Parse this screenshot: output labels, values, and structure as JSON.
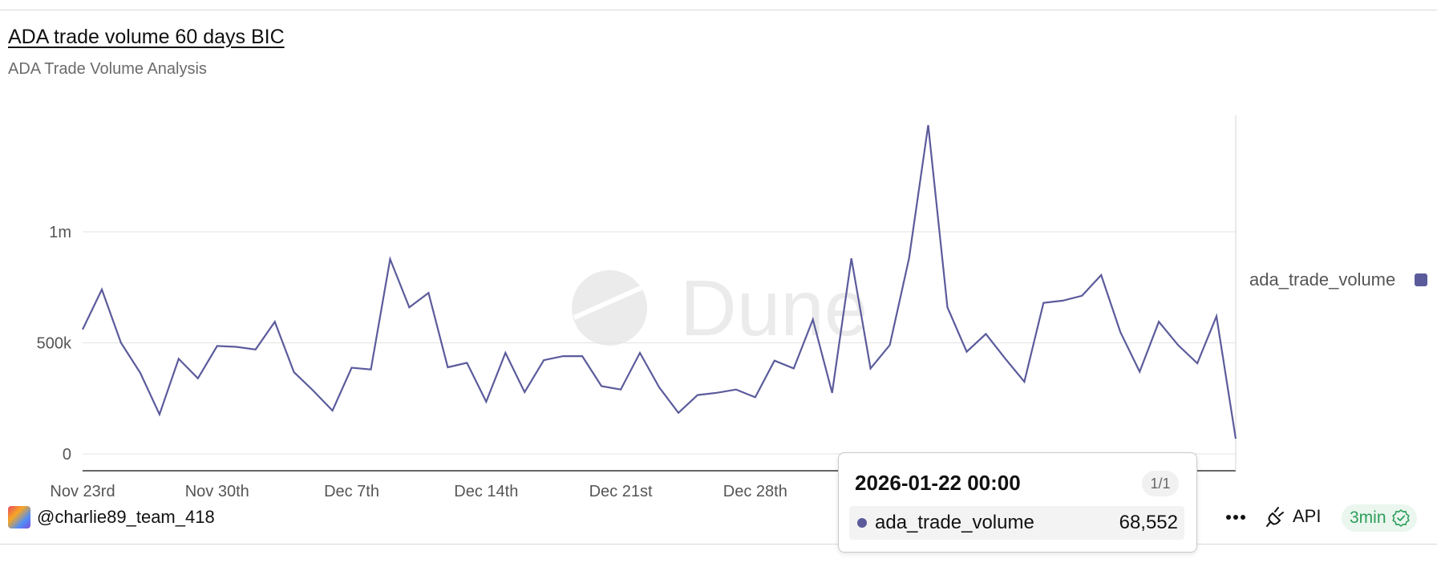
{
  "header": {
    "title": "ADA trade volume 60 days BIC",
    "subtitle": "ADA Trade Volume Analysis"
  },
  "watermark": "Dune",
  "legend": {
    "label": "ada_trade_volume"
  },
  "tooltip": {
    "date": "2026-01-22 00:00",
    "pager": "1/1",
    "series": "ada_trade_volume",
    "value": "68,552"
  },
  "footer": {
    "username": "@charlie89_team_418",
    "api_label": "API",
    "refresh_label": "3min",
    "icons": [
      "more-horizontal-icon",
      "api-plug-icon",
      "check-badge-icon"
    ]
  },
  "colors": {
    "line": "#5b5b9c",
    "refresh_text": "#2e9e5b",
    "refresh_bg": "#eaf6ee"
  },
  "chart_data": {
    "type": "line",
    "title": "ADA trade volume 60 days BIC",
    "subtitle": "ADA Trade Volume Analysis",
    "xlabel": "",
    "ylabel": "",
    "x_start": "2025-11-23",
    "y_ticks": [
      0,
      500000,
      1000000
    ],
    "y_tick_labels": [
      "0",
      "500k",
      "1m"
    ],
    "ylim": [
      0,
      1470000
    ],
    "x_tick_labels": [
      "Nov 23rd",
      "Nov 30th",
      "Dec 7th",
      "Dec 14th",
      "Dec 21st",
      "Dec 28th"
    ],
    "x_tick_index": [
      0,
      7,
      14,
      21,
      28,
      35
    ],
    "grid": "horizontal",
    "legend_position": "right",
    "series": [
      {
        "name": "ada_trade_volume",
        "values": [
          560000,
          740000,
          500000,
          365000,
          178000,
          428000,
          340000,
          486000,
          482000,
          470000,
          595000,
          368000,
          285000,
          195000,
          388000,
          380000,
          877000,
          660000,
          725000,
          390000,
          410000,
          235000,
          455000,
          278000,
          422000,
          440000,
          440000,
          305000,
          290000,
          455000,
          300000,
          185000,
          265000,
          275000,
          290000,
          255000,
          420000,
          385000,
          605000,
          275000,
          880000,
          385000,
          490000,
          880000,
          1480000,
          660000,
          460000,
          540000,
          430000,
          325000,
          680000,
          690000,
          712000,
          805000,
          548000,
          370000,
          595000,
          490000,
          408000,
          620000,
          68552
        ]
      }
    ]
  }
}
